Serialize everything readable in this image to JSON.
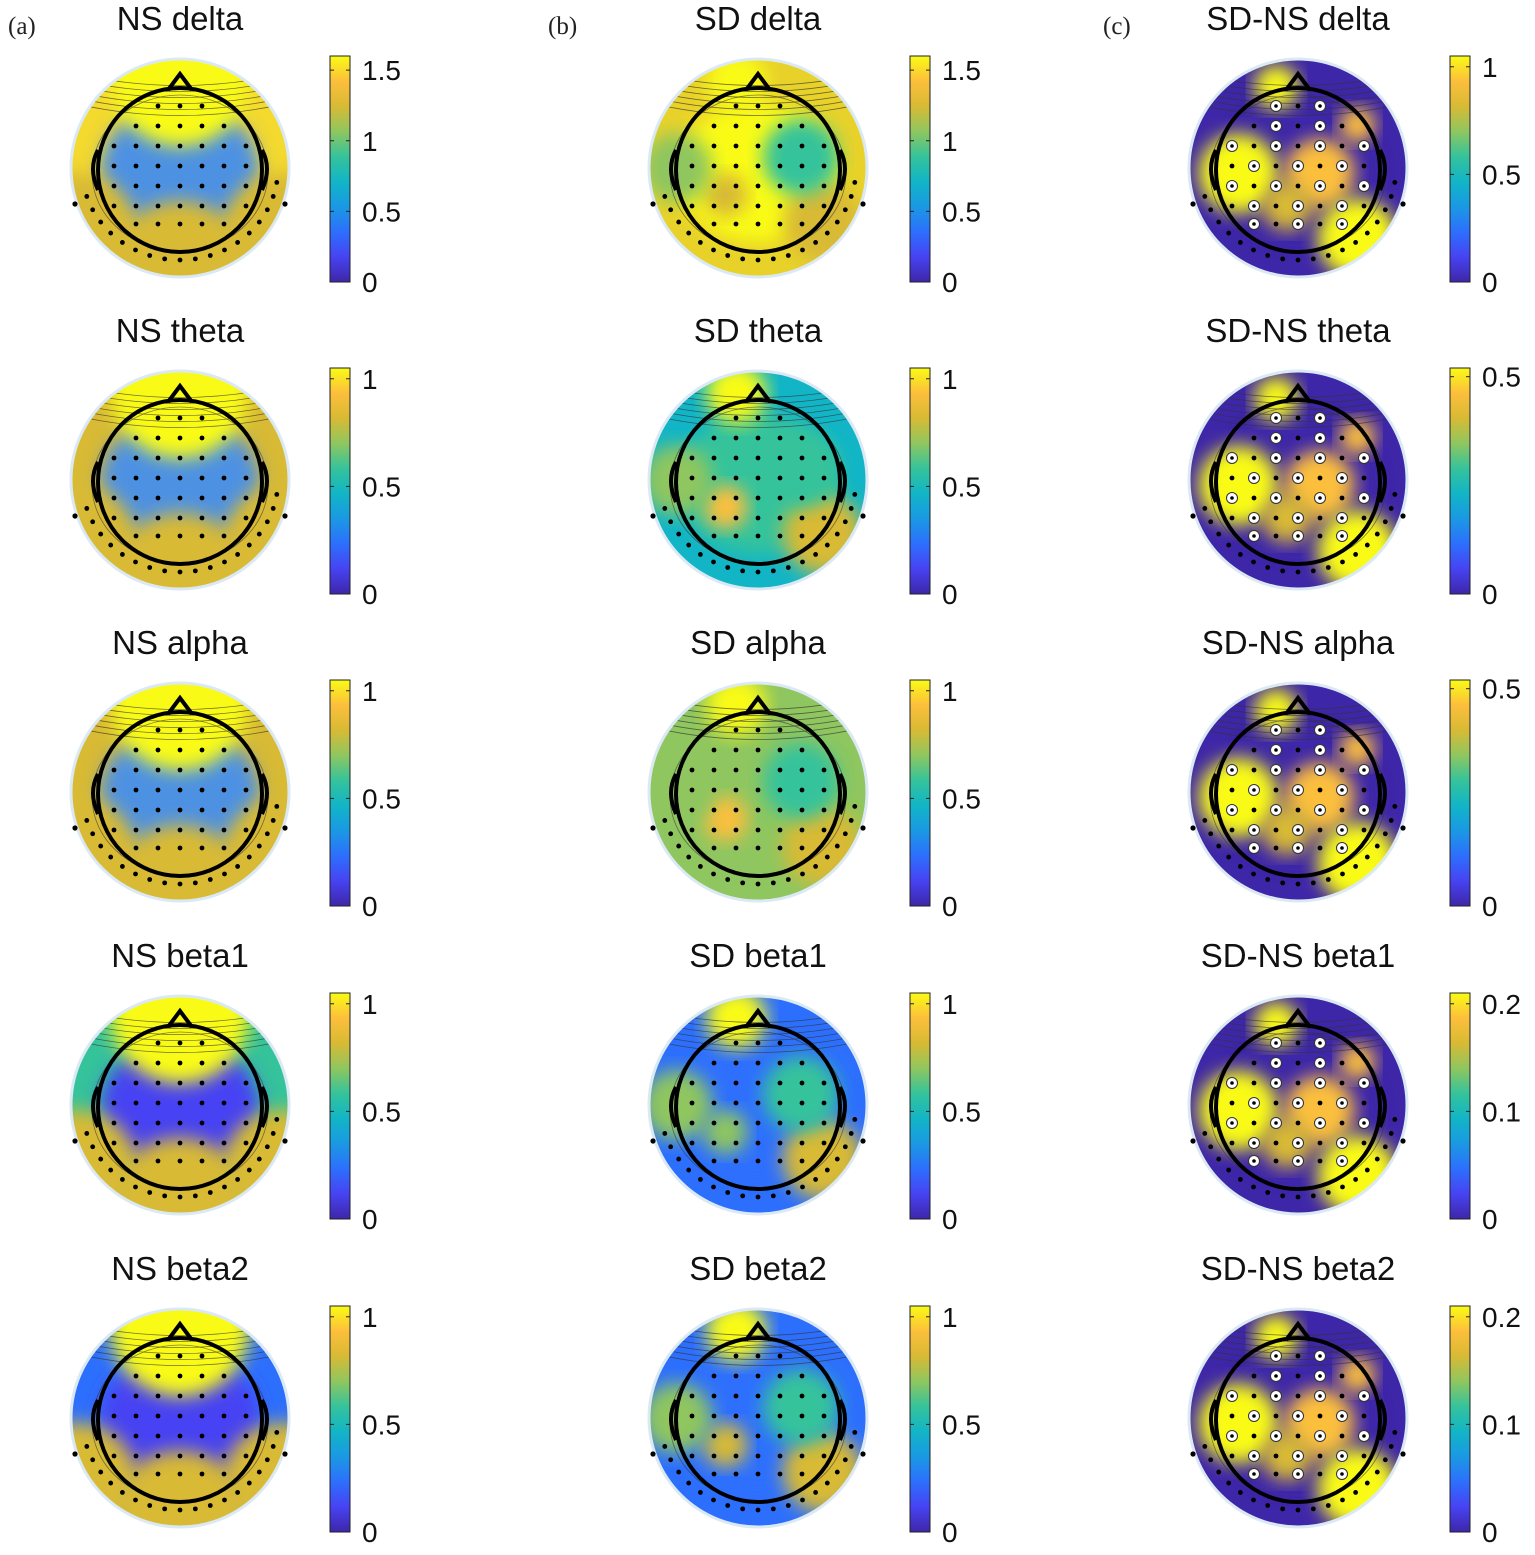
{
  "columns": [
    {
      "letter": "(a)",
      "colorbar_gradient": "parula"
    },
    {
      "letter": "(b)",
      "colorbar_gradient": "parula"
    },
    {
      "letter": "(c)",
      "colorbar_gradient": "parula",
      "electrode_marker": "white-ring"
    }
  ],
  "maps": [
    [
      {
        "title": "NS delta",
        "ticks": [
          "1.5",
          "1",
          "0.5",
          "0"
        ],
        "tick_values": [
          1.5,
          1,
          0.5,
          0
        ],
        "max": 1.6
      },
      {
        "title": "NS theta",
        "ticks": [
          "1",
          "0.5",
          "0"
        ],
        "tick_values": [
          1,
          0.5,
          0
        ],
        "max": 1.05
      },
      {
        "title": "NS alpha",
        "ticks": [
          "1",
          "0.5",
          "0"
        ],
        "tick_values": [
          1,
          0.5,
          0
        ],
        "max": 1.05
      },
      {
        "title": "NS beta1",
        "ticks": [
          "1",
          "0.5",
          "0"
        ],
        "tick_values": [
          1,
          0.5,
          0
        ],
        "max": 1.05
      },
      {
        "title": "NS beta2",
        "ticks": [
          "1",
          "0.5",
          "0"
        ],
        "tick_values": [
          1,
          0.5,
          0
        ],
        "max": 1.05
      }
    ],
    [
      {
        "title": "SD delta",
        "ticks": [
          "1.5",
          "1",
          "0.5",
          "0"
        ],
        "tick_values": [
          1.5,
          1,
          0.5,
          0
        ],
        "max": 1.6
      },
      {
        "title": "SD theta",
        "ticks": [
          "1",
          "0.5",
          "0"
        ],
        "tick_values": [
          1,
          0.5,
          0
        ],
        "max": 1.05
      },
      {
        "title": "SD alpha",
        "ticks": [
          "1",
          "0.5",
          "0"
        ],
        "tick_values": [
          1,
          0.5,
          0
        ],
        "max": 1.05
      },
      {
        "title": "SD beta1",
        "ticks": [
          "1",
          "0.5",
          "0"
        ],
        "tick_values": [
          1,
          0.5,
          0
        ],
        "max": 1.05
      },
      {
        "title": "SD beta2",
        "ticks": [
          "1",
          "0.5",
          "0"
        ],
        "tick_values": [
          1,
          0.5,
          0
        ],
        "max": 1.05
      }
    ],
    [
      {
        "title": "SD-NS delta",
        "ticks": [
          "1",
          "0.5",
          "0"
        ],
        "tick_values": [
          1,
          0.5,
          0
        ],
        "max": 1.05
      },
      {
        "title": "SD-NS theta",
        "ticks": [
          "0.5",
          "0"
        ],
        "tick_values": [
          0.5,
          0
        ],
        "max": 0.52
      },
      {
        "title": "SD-NS alpha",
        "ticks": [
          "0.5",
          "0"
        ],
        "tick_values": [
          0.5,
          0
        ],
        "max": 0.52
      },
      {
        "title": "SD-NS beta1",
        "ticks": [
          "0.2",
          "0.1",
          "0"
        ],
        "tick_values": [
          0.2,
          0.1,
          0
        ],
        "max": 0.21
      },
      {
        "title": "SD-NS beta2",
        "ticks": [
          "0.2",
          "0.1",
          "0"
        ],
        "tick_values": [
          0.2,
          0.1,
          0
        ],
        "max": 0.21
      }
    ]
  ],
  "colors": {
    "parula": [
      "#3e26a8",
      "#4743f3",
      "#2d6ffd",
      "#1a99e3",
      "#12b5c6",
      "#35c39b",
      "#8fc65f",
      "#d8ba34",
      "#fcbf3c",
      "#f9fb15"
    ],
    "head_fill_ns": "#4d91e3",
    "head_fill_diff": "#3e26a8",
    "outline": "#000000"
  }
}
